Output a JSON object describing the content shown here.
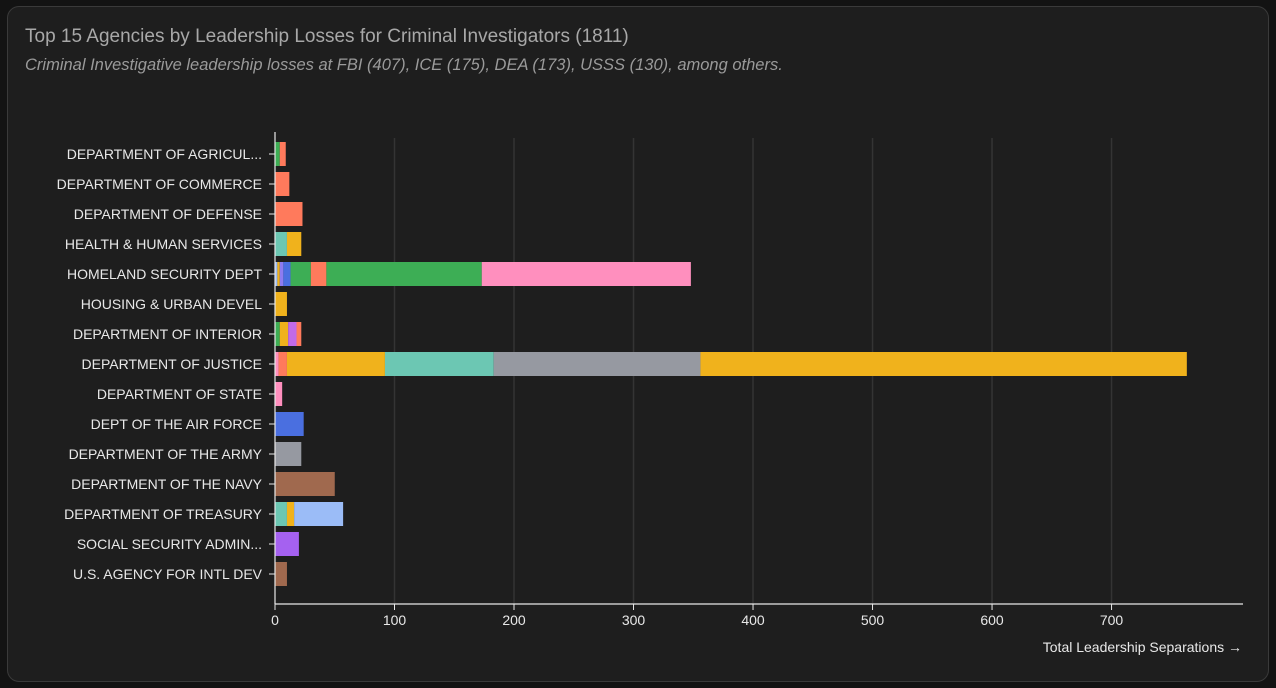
{
  "title": "Top 15 Agencies by Leadership Losses for Criminal Investigators (1811)",
  "subtitle": "Criminal Investigative leadership losses at FBI (407), ICE (175), DEA (173), USSS (130), among others.",
  "chart_data": {
    "type": "bar",
    "orientation": "horizontal",
    "stacked": true,
    "categories": [
      "DEPARTMENT OF AGRICUL...",
      "DEPARTMENT OF COMMERCE",
      "DEPARTMENT OF DEFENSE",
      "HEALTH & HUMAN SERVICES",
      "HOMELAND SECURITY DEPT",
      "HOUSING & URBAN DEVEL",
      "DEPARTMENT OF INTERIOR",
      "DEPARTMENT OF JUSTICE",
      "DEPARTMENT OF STATE",
      "DEPT OF THE AIR FORCE",
      "DEPARTMENT OF THE ARMY",
      "DEPARTMENT OF THE NAVY",
      "DEPARTMENT OF TREASURY",
      "SOCIAL SECURITY ADMIN...",
      "U.S. AGENCY FOR INTL DEV"
    ],
    "stacks": [
      [
        {
          "value": 4,
          "color": "#3dae55"
        },
        {
          "value": 5,
          "color": "#ff7a5c"
        }
      ],
      [
        {
          "value": 12,
          "color": "#ff7a5c"
        }
      ],
      [
        {
          "value": 23,
          "color": "#ff7a5c"
        }
      ],
      [
        {
          "value": 10,
          "color": "#6cc7b3"
        },
        {
          "value": 12,
          "color": "#f0b21c"
        }
      ],
      [
        {
          "value": 2,
          "color": "#9bbcf7"
        },
        {
          "value": 2,
          "color": "#f0b21c"
        },
        {
          "value": 3,
          "color": "#8d7cf0"
        },
        {
          "value": 6,
          "color": "#4a6fe0"
        },
        {
          "value": 17,
          "color": "#3dae55"
        },
        {
          "value": 13,
          "color": "#ff7a5c"
        },
        {
          "value": 130,
          "color": "#3dae55"
        },
        {
          "value": 175,
          "color": "#ff8fbe"
        }
      ],
      [
        {
          "value": 10,
          "color": "#f0b21c"
        }
      ],
      [
        {
          "value": 4,
          "color": "#3dae55"
        },
        {
          "value": 7,
          "color": "#f0b21c"
        },
        {
          "value": 7,
          "color": "#c26ae8"
        },
        {
          "value": 4,
          "color": "#ff7a5c"
        }
      ],
      [
        {
          "value": 3,
          "color": "#ff8fbe"
        },
        {
          "value": 7,
          "color": "#ff7a5c"
        },
        {
          "value": 82,
          "color": "#f0b21c"
        },
        {
          "value": 91,
          "color": "#6cc7b3"
        },
        {
          "value": 173,
          "color": "#9699a1"
        },
        {
          "value": 407,
          "color": "#f0b21c"
        }
      ],
      [
        {
          "value": 6,
          "color": "#ff8fbe"
        }
      ],
      [
        {
          "value": 24,
          "color": "#4a6fe0"
        }
      ],
      [
        {
          "value": 22,
          "color": "#9699a1"
        }
      ],
      [
        {
          "value": 50,
          "color": "#a0694e"
        }
      ],
      [
        {
          "value": 10,
          "color": "#6cc7b3"
        },
        {
          "value": 6,
          "color": "#f0b21c"
        },
        {
          "value": 41,
          "color": "#9bbcf7"
        }
      ],
      [
        {
          "value": 20,
          "color": "#a561f0"
        }
      ],
      [
        {
          "value": 10,
          "color": "#a0694e"
        }
      ]
    ],
    "xticks": [
      0,
      100,
      200,
      300,
      400,
      500,
      600,
      700
    ],
    "xlim": [
      0,
      810
    ],
    "xlabel": "Total Leadership Separations →",
    "ylabel": "",
    "grid": true
  }
}
